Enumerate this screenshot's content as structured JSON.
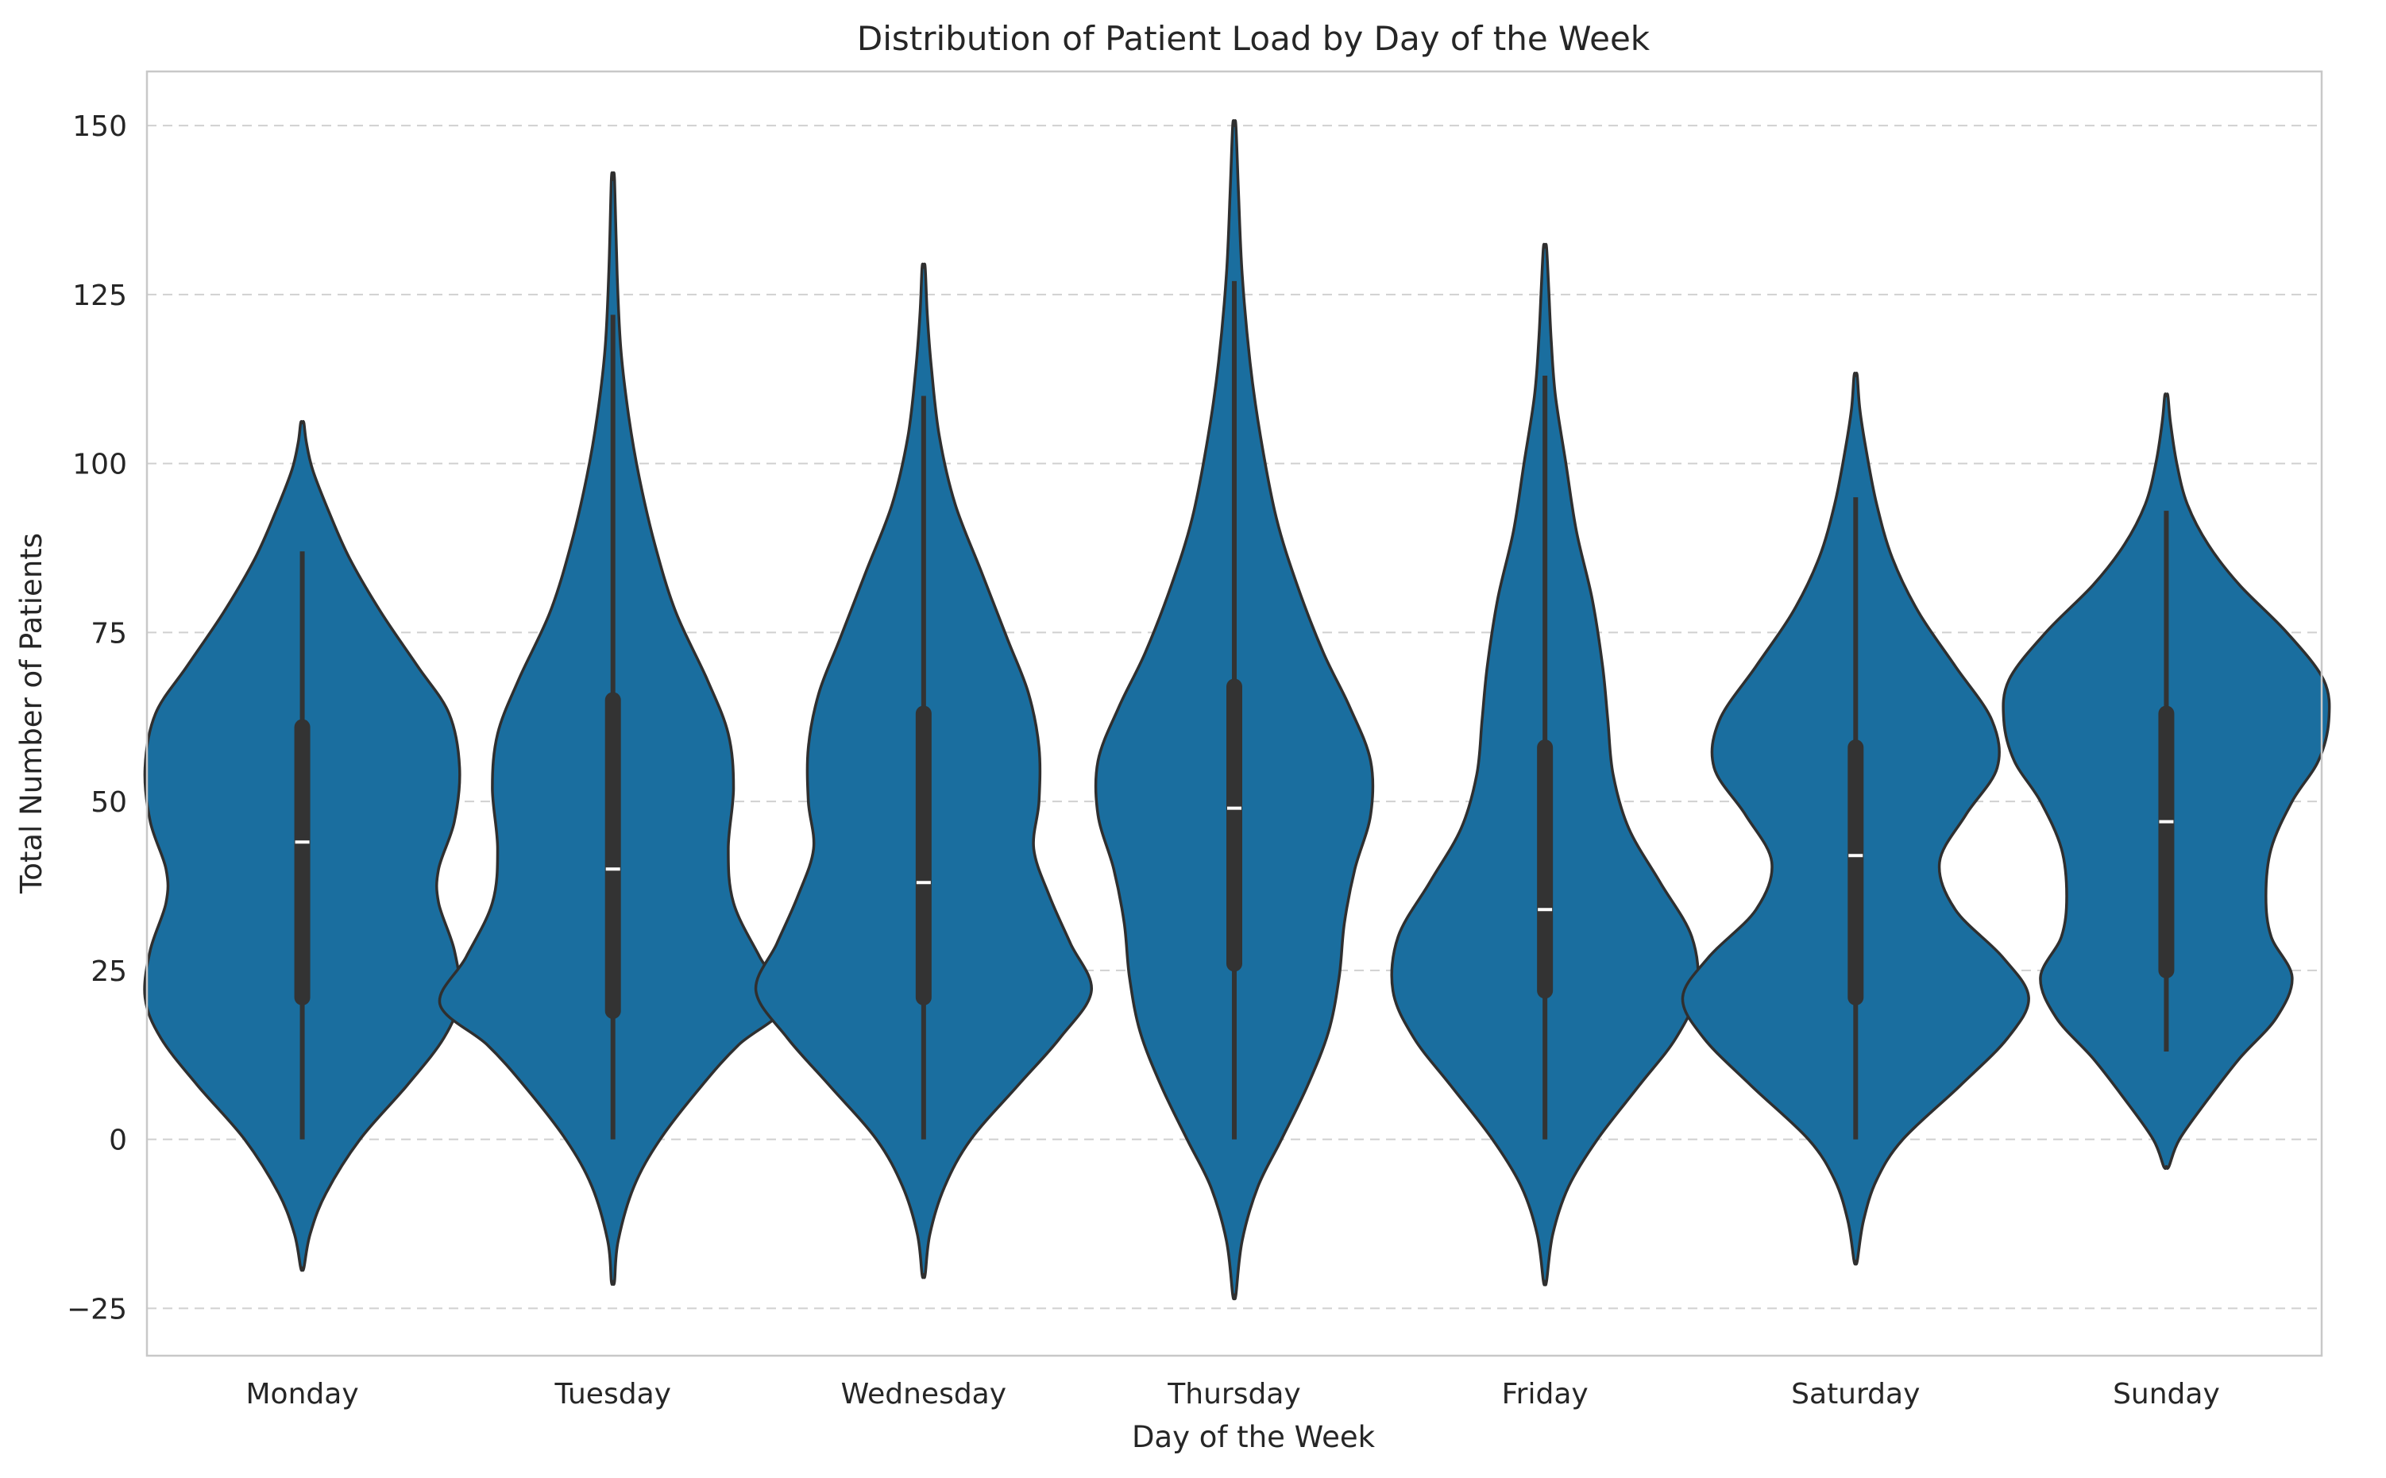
{
  "chart_data": {
    "type": "violin",
    "title": "Distribution of Patient Load by Day of the Week",
    "xlabel": "Day of the Week",
    "ylabel": "Total Number of Patients",
    "ylim": [
      -32,
      158
    ],
    "yticks": [
      -25,
      0,
      25,
      50,
      75,
      100,
      125,
      150
    ],
    "ytick_labels": [
      "−25",
      "0",
      "25",
      "50",
      "75",
      "100",
      "125",
      "150"
    ],
    "grid": {
      "y": true,
      "style": "dashed"
    },
    "colors": {
      "violin_fill": "#1a6e9f",
      "violin_edge": "#2f2f2f",
      "box": "#333333",
      "median": "#ffffff",
      "grid": "#d0d0d0",
      "spine": "#c8c8c8"
    },
    "categories": [
      "Monday",
      "Tuesday",
      "Wednesday",
      "Thursday",
      "Friday",
      "Saturday",
      "Sunday"
    ],
    "violins": [
      {
        "day": "Monday",
        "median": 44,
        "q1": 21,
        "q3": 61,
        "whisker_low": 0,
        "whisker_high": 87,
        "density_max_halfwidth": 30,
        "profile": [
          [
            -19,
            0.3
          ],
          [
            -14,
            1.5
          ],
          [
            -8,
            4.5
          ],
          [
            0,
            11
          ],
          [
            8,
            20
          ],
          [
            15,
            27
          ],
          [
            21,
            30
          ],
          [
            28,
            29
          ],
          [
            35,
            26
          ],
          [
            40,
            26
          ],
          [
            47,
            29
          ],
          [
            55,
            30
          ],
          [
            63,
            28
          ],
          [
            70,
            22
          ],
          [
            78,
            15
          ],
          [
            86,
            9
          ],
          [
            93,
            5
          ],
          [
            99,
            2
          ],
          [
            103,
            0.8
          ],
          [
            106,
            0.3
          ]
        ]
      },
      {
        "day": "Tuesday",
        "median": 40,
        "q1": 19,
        "q3": 65,
        "whisker_low": 0,
        "whisker_high": 122,
        "density_max_halfwidth": 33,
        "profile": [
          [
            -21,
            0.3
          ],
          [
            -15,
            1.0
          ],
          [
            -7,
            4
          ],
          [
            0,
            9
          ],
          [
            8,
            17
          ],
          [
            14,
            24
          ],
          [
            20,
            33
          ],
          [
            27,
            28
          ],
          [
            35,
            23
          ],
          [
            43,
            22
          ],
          [
            52,
            23
          ],
          [
            60,
            22
          ],
          [
            68,
            18
          ],
          [
            78,
            12
          ],
          [
            88,
            8
          ],
          [
            98,
            5
          ],
          [
            107,
            3
          ],
          [
            117,
            1.5
          ],
          [
            128,
            0.8
          ],
          [
            142,
            0.3
          ]
        ]
      },
      {
        "day": "Wednesday",
        "median": 38,
        "q1": 21,
        "q3": 63,
        "whisker_low": 0,
        "whisker_high": 110,
        "density_max_halfwidth": 32,
        "profile": [
          [
            -20,
            0.3
          ],
          [
            -14,
            1.2
          ],
          [
            -7,
            4
          ],
          [
            0,
            9
          ],
          [
            8,
            18
          ],
          [
            15,
            26
          ],
          [
            22,
            32
          ],
          [
            29,
            28
          ],
          [
            36,
            24
          ],
          [
            43,
            21
          ],
          [
            50,
            22
          ],
          [
            58,
            22
          ],
          [
            66,
            20
          ],
          [
            74,
            16
          ],
          [
            84,
            11
          ],
          [
            94,
            6
          ],
          [
            104,
            3
          ],
          [
            114,
            1.5
          ],
          [
            122,
            0.7
          ],
          [
            129,
            0.3
          ]
        ]
      },
      {
        "day": "Thursday",
        "median": 49,
        "q1": 26,
        "q3": 67,
        "whisker_low": 0,
        "whisker_high": 127,
        "density_max_halfwidth": 30,
        "profile": [
          [
            -23,
            0.3
          ],
          [
            -15,
            1.5
          ],
          [
            -7,
            4.5
          ],
          [
            0,
            9
          ],
          [
            8,
            14
          ],
          [
            16,
            18
          ],
          [
            24,
            20
          ],
          [
            32,
            21
          ],
          [
            40,
            23
          ],
          [
            48,
            26
          ],
          [
            56,
            26
          ],
          [
            64,
            22
          ],
          [
            72,
            17
          ],
          [
            82,
            12
          ],
          [
            92,
            8
          ],
          [
            104,
            5
          ],
          [
            115,
            3
          ],
          [
            128,
            1.5
          ],
          [
            140,
            0.8
          ],
          [
            150,
            0.3
          ]
        ]
      },
      {
        "day": "Friday",
        "median": 34,
        "q1": 22,
        "q3": 58,
        "whisker_low": 0,
        "whisker_high": 113,
        "density_max_halfwidth": 29,
        "profile": [
          [
            -21,
            0.3
          ],
          [
            -14,
            1.5
          ],
          [
            -7,
            4.5
          ],
          [
            0,
            10
          ],
          [
            8,
            18
          ],
          [
            15,
            25
          ],
          [
            22,
            29
          ],
          [
            30,
            28
          ],
          [
            38,
            22
          ],
          [
            46,
            16
          ],
          [
            54,
            13
          ],
          [
            62,
            12
          ],
          [
            70,
            11
          ],
          [
            80,
            9
          ],
          [
            90,
            6
          ],
          [
            100,
            4
          ],
          [
            110,
            2
          ],
          [
            118,
            1.2
          ],
          [
            126,
            0.7
          ],
          [
            132,
            0.3
          ]
        ]
      },
      {
        "day": "Saturday",
        "median": 42,
        "q1": 21,
        "q3": 58,
        "whisker_low": 0,
        "whisker_high": 95,
        "density_max_halfwidth": 33,
        "profile": [
          [
            -18,
            0.3
          ],
          [
            -12,
            1.5
          ],
          [
            -6,
            4
          ],
          [
            0,
            9
          ],
          [
            8,
            20
          ],
          [
            15,
            29
          ],
          [
            21,
            33
          ],
          [
            27,
            28
          ],
          [
            34,
            19
          ],
          [
            41,
            16
          ],
          [
            48,
            21
          ],
          [
            55,
            27
          ],
          [
            62,
            26
          ],
          [
            70,
            19
          ],
          [
            78,
            12
          ],
          [
            86,
            7
          ],
          [
            94,
            4
          ],
          [
            102,
            2
          ],
          [
            108,
            0.8
          ],
          [
            113,
            0.3
          ]
        ]
      },
      {
        "day": "Sunday",
        "median": 47,
        "q1": 25,
        "q3": 63,
        "whisker_low": 13,
        "whisker_high": 93,
        "density_max_halfwidth": 31,
        "profile": [
          [
            -4,
            0.5
          ],
          [
            0,
            2.5
          ],
          [
            6,
            8
          ],
          [
            12,
            14
          ],
          [
            18,
            21
          ],
          [
            24,
            24
          ],
          [
            30,
            20
          ],
          [
            36,
            19
          ],
          [
            43,
            20
          ],
          [
            50,
            24
          ],
          [
            56,
            29
          ],
          [
            62,
            31
          ],
          [
            68,
            30
          ],
          [
            75,
            23
          ],
          [
            82,
            14
          ],
          [
            88,
            8
          ],
          [
            94,
            4
          ],
          [
            100,
            2
          ],
          [
            106,
            0.8
          ],
          [
            110,
            0.3
          ]
        ]
      }
    ]
  }
}
